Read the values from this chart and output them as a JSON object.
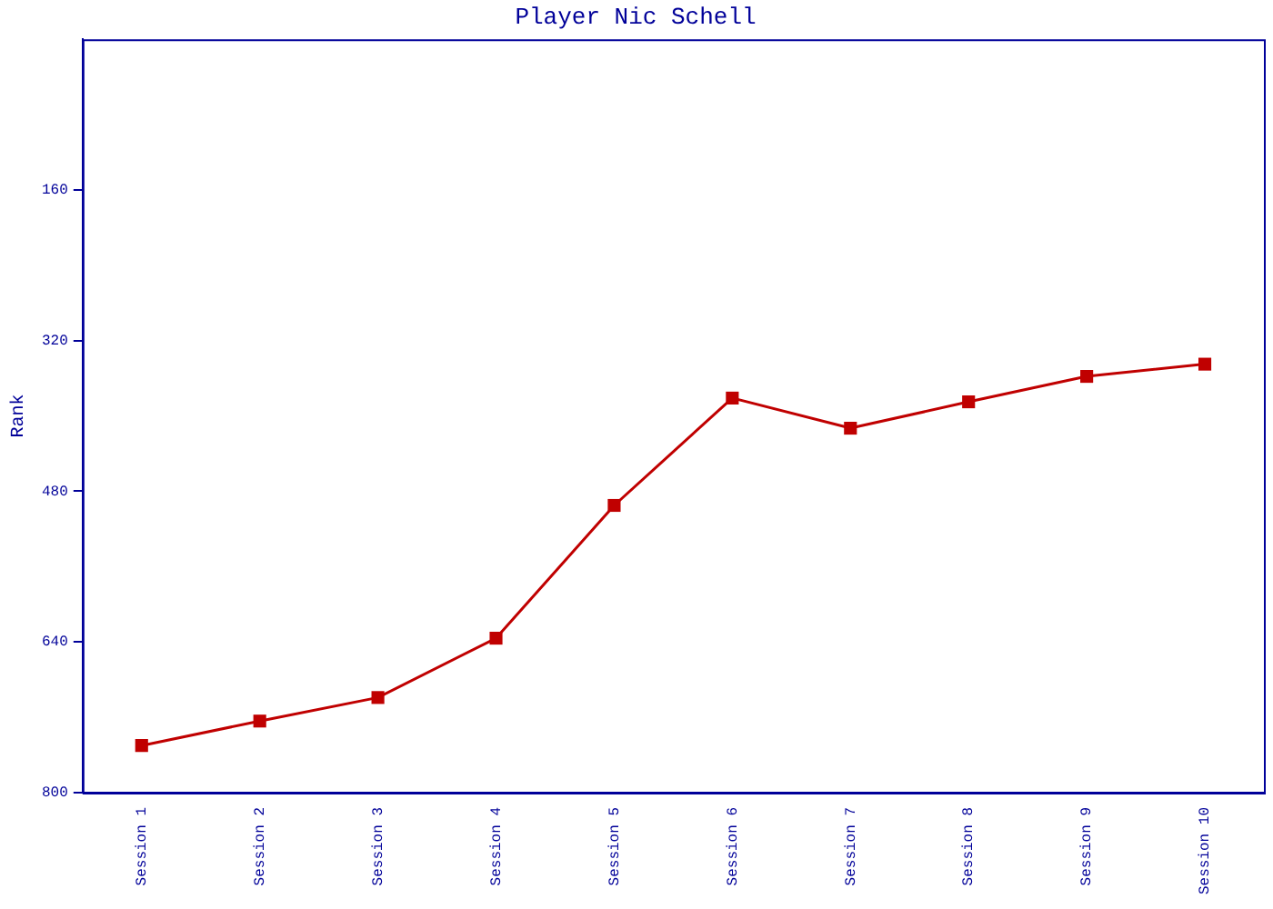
{
  "chart_data": {
    "type": "line",
    "title": "Player Nic Schell",
    "ylabel": "Rank",
    "categories": [
      "Session 1",
      "Session 2",
      "Session 3",
      "Session 4",
      "Session 5",
      "Session 6",
      "Session 7",
      "Session 8",
      "Session 9",
      "Session 10"
    ],
    "series": [
      {
        "color": "#c00000",
        "values": [
          750,
          724,
          699,
          636,
          495,
          381,
          413,
          385,
          358,
          345
        ]
      }
    ],
    "ylim": [
      800,
      0
    ],
    "yticks": [
      160,
      320,
      480,
      640,
      800
    ],
    "grid": false,
    "legend": false,
    "marker": "square",
    "line_style": "solid"
  }
}
